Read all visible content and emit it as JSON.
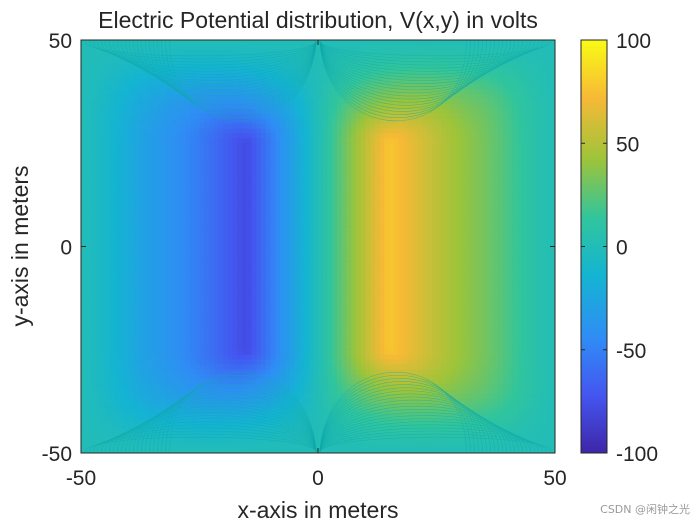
{
  "chart_data": {
    "type": "heatmap",
    "title": "Electric Potential distribution, V(x,y) in volts",
    "xlabel": "x-axis in meters",
    "ylabel": "y-axis in meters",
    "xlim": [
      -50,
      50
    ],
    "ylim": [
      -50,
      50
    ],
    "xticks": [
      -50,
      0,
      50
    ],
    "yticks": [
      -50,
      0,
      50
    ],
    "colorbar": {
      "range": [
        -100,
        100
      ],
      "ticks": [
        100,
        50,
        0,
        -50,
        -100
      ],
      "colormap": "parula"
    },
    "plates": [
      {
        "name": "negative plate",
        "x": -15,
        "y_range": [
          -25,
          25
        ],
        "potential": -100
      },
      {
        "name": "positive plate",
        "x": 15,
        "y_range": [
          -25,
          25
        ],
        "potential": 100
      }
    ],
    "boundary_potential": 0,
    "grid": false
  },
  "watermark": "CSDN @闲钟之光"
}
